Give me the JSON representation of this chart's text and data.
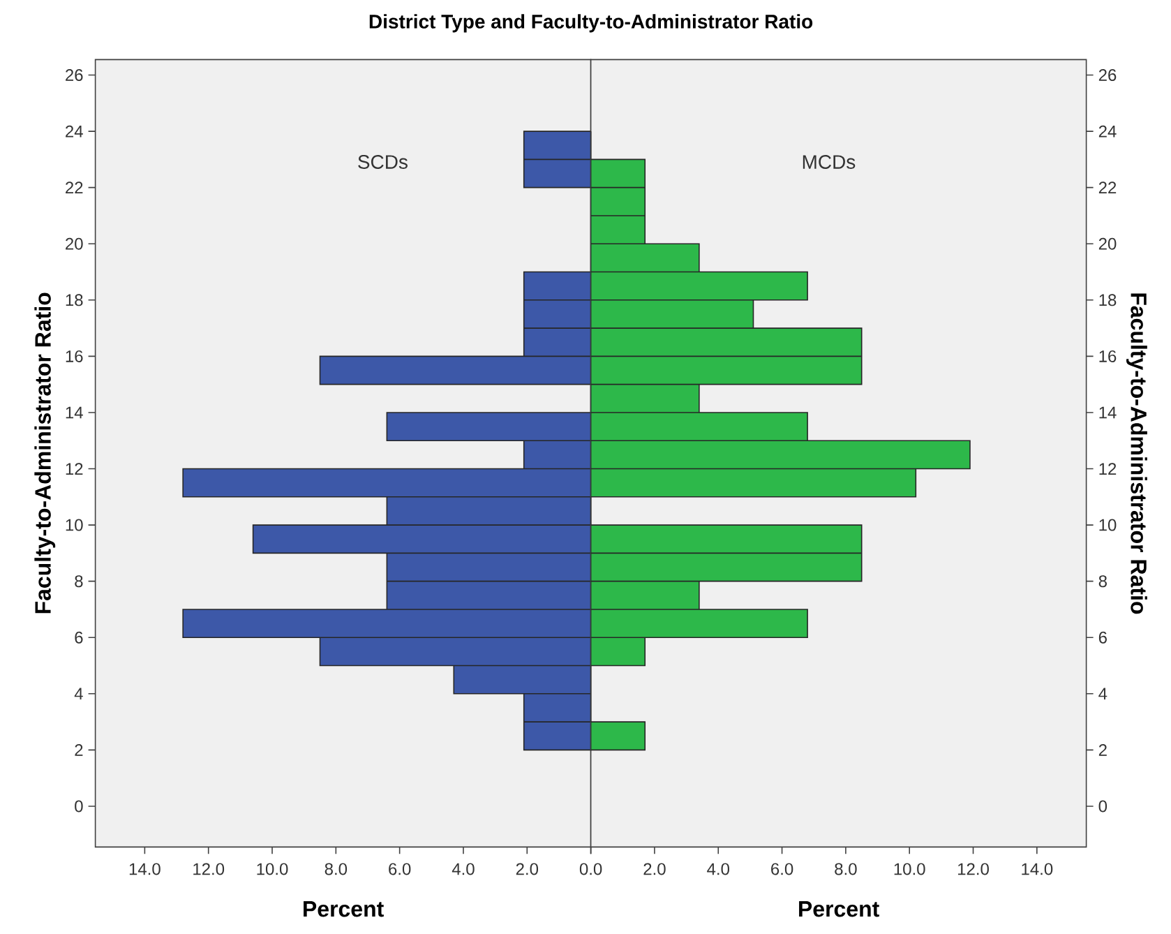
{
  "chart_data": [
    {
      "type": "histogram",
      "orientation": "horizontal",
      "title": "District Type and Faculty-to-Administrator Ratio",
      "xlabel": "Percent",
      "ylabel": "Faculty-to-Administrator Ratio",
      "bins": [
        2,
        3,
        4,
        5,
        6,
        7,
        8,
        9,
        10,
        11,
        12,
        13,
        14,
        15,
        16,
        17,
        18,
        19,
        20,
        21,
        22,
        23,
        24
      ],
      "series": [
        {
          "name": "SCDs",
          "color": "#3d58a8",
          "values": [
            2.1,
            2.1,
            4.3,
            8.5,
            12.8,
            6.4,
            6.4,
            10.6,
            6.4,
            12.8,
            2.1,
            6.4,
            0,
            8.5,
            2.1,
            2.1,
            2.1,
            0,
            0,
            0,
            2.1,
            2.1
          ]
        }
      ],
      "xlim": [
        15.55,
        0
      ],
      "xticks": [
        {
          "value": 14,
          "label": "14.0"
        },
        {
          "value": 12,
          "label": "12.0"
        },
        {
          "value": 10,
          "label": "10.0"
        },
        {
          "value": 8,
          "label": "8.0"
        },
        {
          "value": 6,
          "label": "6.0"
        },
        {
          "value": 4,
          "label": "4.0"
        },
        {
          "value": 2,
          "label": "2.0"
        },
        {
          "value": 0,
          "label": "0.0"
        }
      ],
      "ylim": [
        -1.45,
        26.55
      ],
      "yticks": [
        0,
        2,
        4,
        6,
        8,
        10,
        12,
        14,
        16,
        18,
        20,
        22,
        24,
        26
      ]
    },
    {
      "type": "histogram",
      "orientation": "horizontal",
      "xlabel": "Percent",
      "ylabel": "Faculty-to-Administrator Ratio",
      "bins": [
        2,
        3,
        4,
        5,
        6,
        7,
        8,
        9,
        10,
        11,
        12,
        13,
        14,
        15,
        16,
        17,
        18,
        19,
        20,
        21,
        22,
        23,
        24
      ],
      "series": [
        {
          "name": "MCDs",
          "color": "#2db84a",
          "values": [
            1.7,
            0,
            0,
            1.7,
            6.8,
            3.4,
            8.5,
            8.5,
            0,
            10.2,
            11.9,
            6.8,
            3.4,
            8.5,
            8.5,
            5.1,
            6.8,
            3.4,
            1.7,
            1.7,
            1.7,
            0
          ]
        }
      ],
      "xlim": [
        0,
        15.55
      ],
      "xticks": [
        {
          "value": 0,
          "label": null
        },
        {
          "value": 2,
          "label": "2.0"
        },
        {
          "value": 4,
          "label": "4.0"
        },
        {
          "value": 6,
          "label": "6.0"
        },
        {
          "value": 8,
          "label": "8.0"
        },
        {
          "value": 10,
          "label": "10.0"
        },
        {
          "value": 12,
          "label": "12.0"
        },
        {
          "value": 14,
          "label": "14.0"
        }
      ],
      "ylim": [
        -1.45,
        26.55
      ],
      "yticks": [
        0,
        2,
        4,
        6,
        8,
        10,
        12,
        14,
        16,
        18,
        20,
        22,
        24,
        26
      ]
    }
  ]
}
